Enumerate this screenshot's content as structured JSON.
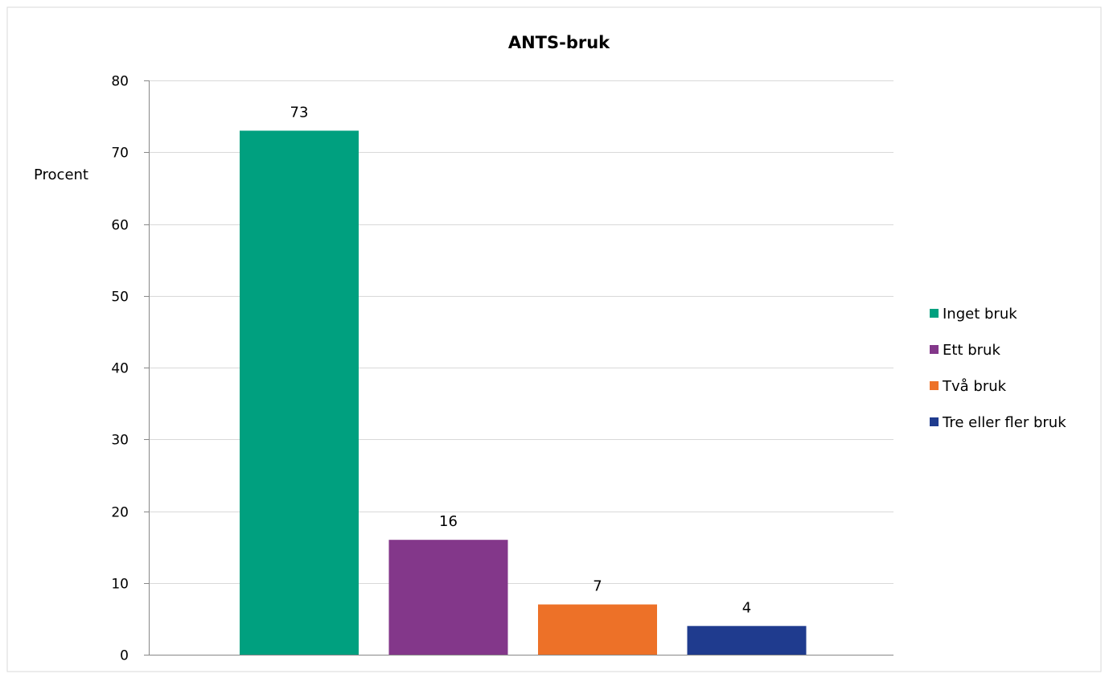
{
  "chart_data": {
    "type": "bar",
    "title": "ANTS-bruk",
    "xlabel": "",
    "ylabel": "Procent",
    "ylim": [
      0,
      80
    ],
    "yticks": [
      0,
      10,
      20,
      30,
      40,
      50,
      60,
      70,
      80
    ],
    "grid": true,
    "legend_position": "right",
    "categories": [
      "Inget bruk",
      "Ett bruk",
      "Två bruk",
      "Tre eller fler bruk"
    ],
    "values": [
      73,
      16,
      7,
      4
    ],
    "data_labels": [
      "73",
      "16",
      "7",
      "4"
    ],
    "colors": [
      "#00a07f",
      "#83378a",
      "#ed7128",
      "#1f3b8e"
    ]
  }
}
